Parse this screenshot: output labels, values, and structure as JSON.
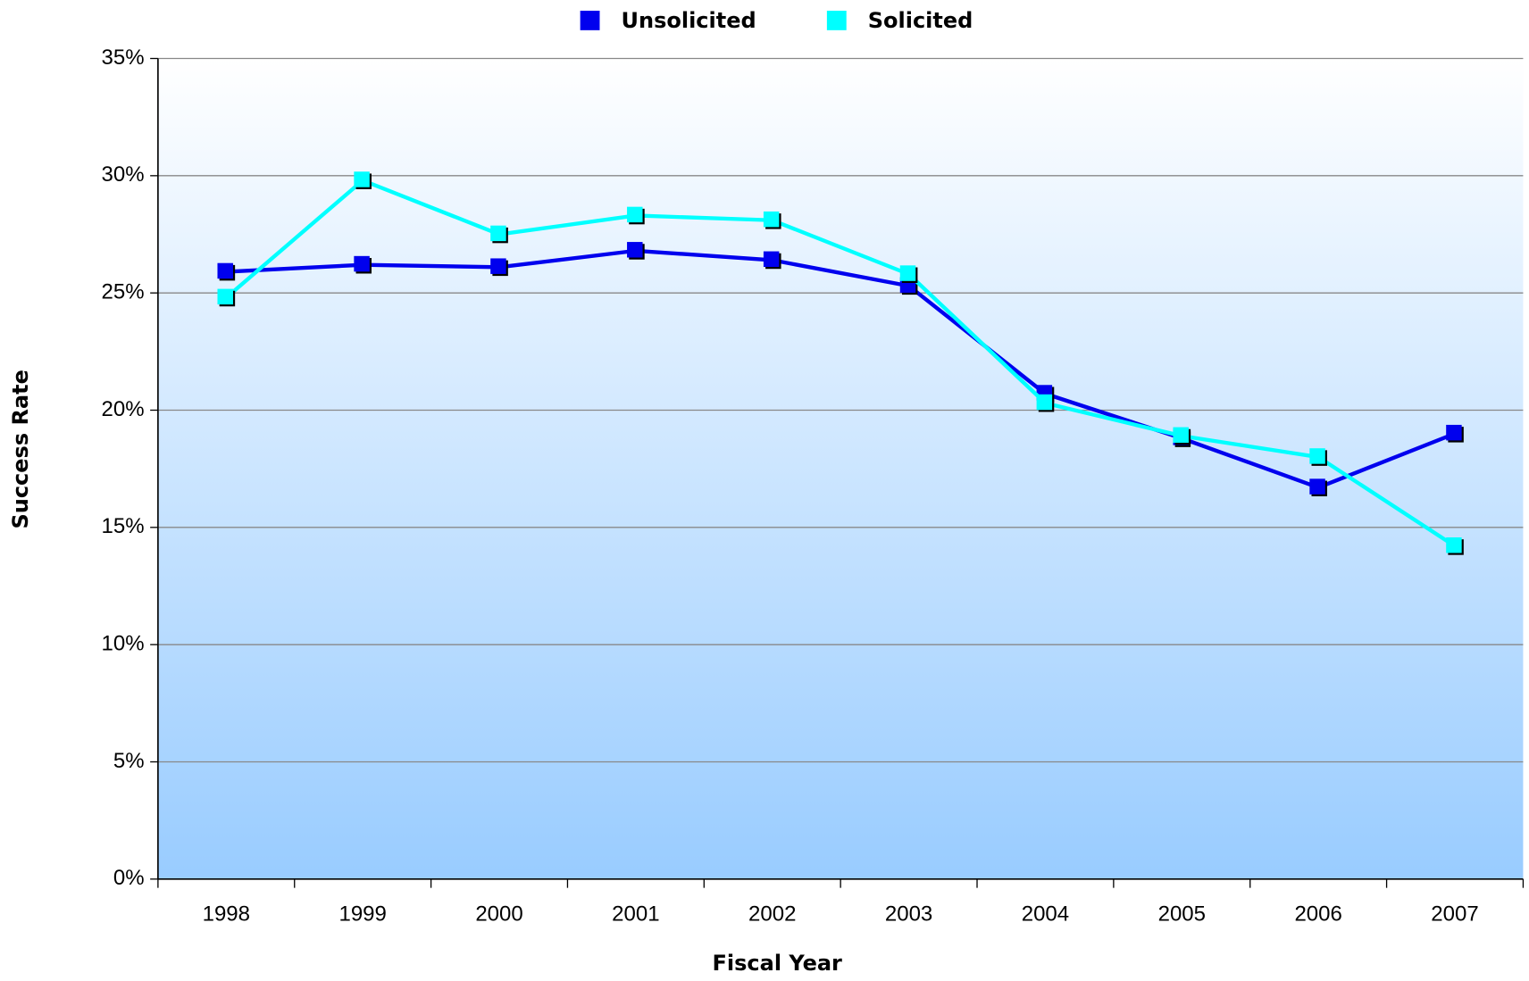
{
  "chart_data": {
    "type": "line",
    "x_label": "Fiscal Year",
    "y_label": "Success Rate",
    "categories": [
      "1998",
      "1999",
      "2000",
      "2001",
      "2002",
      "2003",
      "2004",
      "2005",
      "2006",
      "2007"
    ],
    "series": [
      {
        "name": "Unsolicited",
        "color": "#0000ee",
        "values": [
          25.9,
          26.2,
          26.1,
          26.8,
          26.4,
          25.3,
          20.7,
          18.8,
          16.7,
          19.0
        ]
      },
      {
        "name": "Solicited",
        "color": "#00ffff",
        "values": [
          24.8,
          29.8,
          27.5,
          28.3,
          28.1,
          25.8,
          20.3,
          18.9,
          18.0,
          14.2
        ]
      }
    ],
    "ylim": [
      0,
      35
    ],
    "yticks": [
      {
        "value": 0,
        "label": "0%"
      },
      {
        "value": 5,
        "label": "5%"
      },
      {
        "value": 10,
        "label": "10%"
      },
      {
        "value": 15,
        "label": "15%"
      },
      {
        "value": 20,
        "label": "20%"
      },
      {
        "value": 25,
        "label": "25%"
      },
      {
        "value": 30,
        "label": "30%"
      },
      {
        "value": 35,
        "label": "35%"
      }
    ],
    "grid": true,
    "legend": "top"
  }
}
